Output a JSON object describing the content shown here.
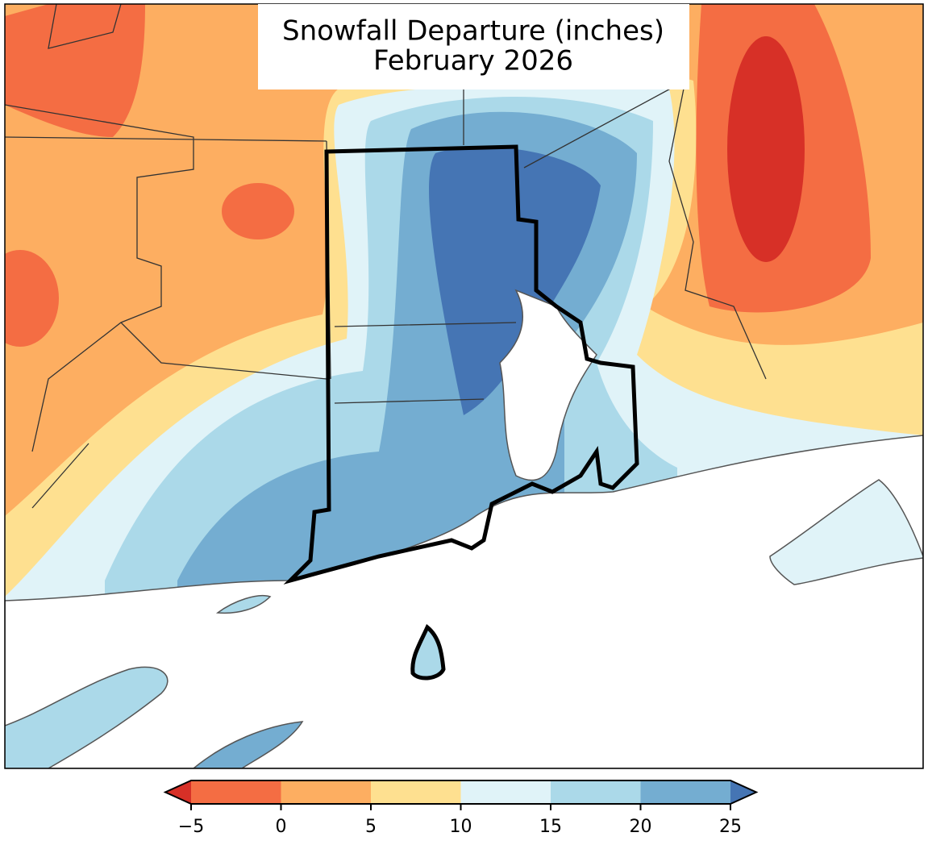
{
  "title": "Snowfall Departure (inches)",
  "subtitle": "February 2026",
  "colorbar": {
    "ticks": [
      {
        "value": -5,
        "label": "−5"
      },
      0,
      5,
      10,
      15,
      20,
      25
    ],
    "colors": [
      "#d73027",
      "#f46d43",
      "#fdae61",
      "#fee090",
      "#e0f3f8",
      "#abd9e9",
      "#74add1",
      "#4575b4"
    ]
  }
}
